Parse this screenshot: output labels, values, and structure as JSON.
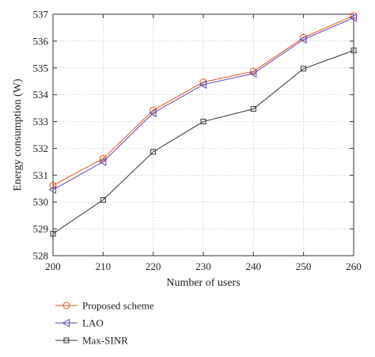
{
  "chart_data": {
    "type": "line",
    "title": "",
    "xlabel": "Number of users",
    "ylabel": "Energy consumption (W)",
    "x": [
      200,
      210,
      220,
      230,
      240,
      250,
      260
    ],
    "xlim": [
      200,
      260
    ],
    "ylim": [
      528,
      537
    ],
    "xticks": [
      "200",
      "210",
      "220",
      "230",
      "240",
      "250",
      "260"
    ],
    "yticks": [
      "528",
      "529",
      "530",
      "531",
      "532",
      "533",
      "534",
      "535",
      "536",
      "537"
    ],
    "grid": true,
    "legend_position": "bottom-left, below plot",
    "series": [
      {
        "name": "Proposed scheme",
        "color": "#e8501a",
        "marker": "circle",
        "values": [
          530.62,
          531.62,
          533.42,
          534.47,
          534.87,
          536.13,
          536.95
        ]
      },
      {
        "name": "LAO",
        "color": "#5b4bb5",
        "marker": "triangle-left",
        "values": [
          530.46,
          531.5,
          533.32,
          534.38,
          534.79,
          536.06,
          536.87
        ]
      },
      {
        "name": "Max-SINR",
        "color": "#333333",
        "marker": "square",
        "values": [
          528.82,
          530.08,
          531.87,
          533.0,
          533.47,
          534.97,
          535.65
        ]
      }
    ]
  }
}
